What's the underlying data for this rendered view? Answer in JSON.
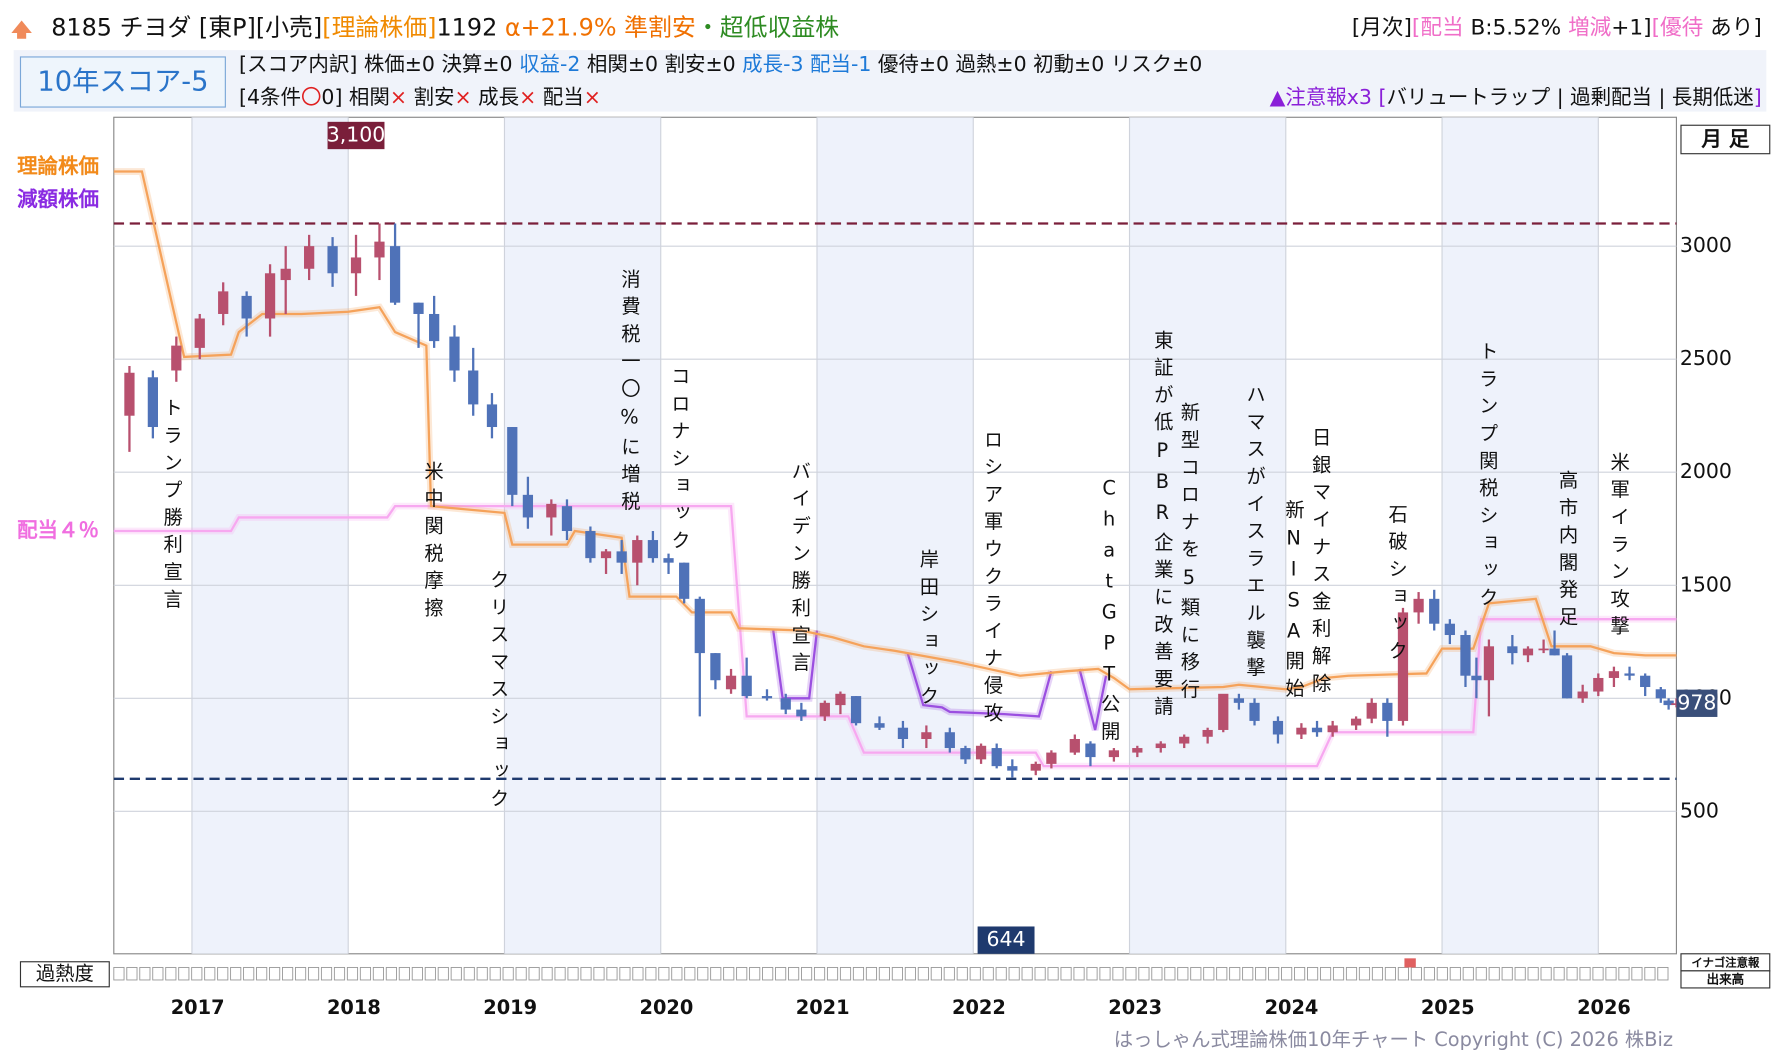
{
  "header": {
    "line1": [
      {
        "text": "8185 チヨダ ",
        "color": "#111"
      },
      {
        "text": "[東P][小売]",
        "color": "#111"
      },
      {
        "text": "[理論株価]",
        "color": "#f08a00"
      },
      {
        "text": "1192 ",
        "color": "#111"
      },
      {
        "text": "α+21.9% 準割安",
        "color": "#f07000"
      },
      {
        "text": "・超低収益株",
        "color": "#2e8b22"
      }
    ],
    "line1_right": [
      {
        "text": "[月次]",
        "color": "#111"
      },
      {
        "text": "[配当",
        "color": "#f06ec8"
      },
      {
        "text": " B:5.52% ",
        "color": "#111"
      },
      {
        "text": "増減",
        "color": "#f06ec8"
      },
      {
        "text": "+1]",
        "color": "#111"
      },
      {
        "text": "[優待",
        "color": "#f06ec8"
      },
      {
        "text": " あり]",
        "color": "#111"
      }
    ],
    "score": "10年スコア-5",
    "line2": [
      {
        "text": "[スコア内訳] 株価±0 決算±0 ",
        "color": "#111"
      },
      {
        "text": "収益-2",
        "color": "#1e7ad8"
      },
      {
        "text": " 相関±0 割安±0 ",
        "color": "#111"
      },
      {
        "text": "成長-3 配当-1",
        "color": "#1e7ad8"
      },
      {
        "text": " 優待±0 過熱±0 初動±0 リスク±0",
        "color": "#111"
      }
    ],
    "line3": [
      {
        "text": "[4条件",
        "color": "#111"
      },
      {
        "text": "〇",
        "color": "#e02020"
      },
      {
        "text": "0] 相関",
        "color": "#111"
      },
      {
        "text": "×",
        "color": "#e02020"
      },
      {
        "text": " 割安",
        "color": "#111"
      },
      {
        "text": "×",
        "color": "#e02020"
      },
      {
        "text": " 成長",
        "color": "#111"
      },
      {
        "text": "×",
        "color": "#e02020"
      },
      {
        "text": " 配当",
        "color": "#111"
      },
      {
        "text": "×",
        "color": "#e02020"
      }
    ],
    "line3_right": [
      {
        "text": "▲注意報x3",
        "color": "#8a1fd8"
      },
      {
        "text": " [",
        "color": "#8a1fd8"
      },
      {
        "text": "バリュートラップ | 過剰配当 | 長期低迷",
        "color": "#111"
      },
      {
        "text": "]",
        "color": "#8a1fd8"
      }
    ],
    "period": "月 足"
  },
  "chart_data": {
    "type": "candlestick",
    "xlim": [
      2016.5,
      2026.5
    ],
    "ylim": [
      -130,
      3570
    ],
    "xticks": [
      2017,
      2018,
      2019,
      2020,
      2021,
      2022,
      2023,
      2024,
      2025,
      2026
    ],
    "yticks": [
      500,
      1000,
      1500,
      2000,
      2500,
      3000
    ],
    "grid": true,
    "shaded_years": [
      2017,
      2019,
      2021,
      2023,
      2025
    ],
    "up_color": "#b8506e",
    "down_color": "#4f72b8",
    "max_line": {
      "value": 3100,
      "label": "3,100",
      "x": 2018.05,
      "color": "#7a1f3a"
    },
    "min_line": {
      "value": 644,
      "label": "644",
      "x": 2022.21,
      "color": "#1f3a6e"
    },
    "last_price": 978,
    "candles": {
      "x": [
        2016.6,
        2016.75,
        2016.9,
        2017.05,
        2017.2,
        2017.35,
        2017.5,
        2017.6,
        2017.75,
        2017.9,
        2018.05,
        2018.2,
        2018.3,
        2018.45,
        2018.55,
        2018.68,
        2018.8,
        2018.92,
        2019.05,
        2019.15,
        2019.3,
        2019.4,
        2019.55,
        2019.65,
        2019.75,
        2019.85,
        2019.95,
        2020.05,
        2020.15,
        2020.25,
        2020.35,
        2020.45,
        2020.55,
        2020.68,
        2020.8,
        2020.9,
        2021.05,
        2021.15,
        2021.25,
        2021.4,
        2021.55,
        2021.7,
        2021.85,
        2021.95,
        2022.05,
        2022.15,
        2022.25,
        2022.4,
        2022.5,
        2022.65,
        2022.75,
        2022.9,
        2023.05,
        2023.2,
        2023.35,
        2023.5,
        2023.6,
        2023.7,
        2023.8,
        2023.95,
        2024.1,
        2024.2,
        2024.3,
        2024.45,
        2024.55,
        2024.65,
        2024.75,
        2024.85,
        2024.95,
        2025.05,
        2025.15,
        2025.22,
        2025.3,
        2025.45,
        2025.55,
        2025.65,
        2025.72,
        2025.8,
        2025.9,
        2026.0,
        2026.1,
        2026.2,
        2026.3,
        2026.4,
        2026.45,
        2026.5
      ],
      "open": [
        2250,
        2420,
        2450,
        2550,
        2700,
        2780,
        2680,
        2850,
        2900,
        3000,
        2880,
        2950,
        3000,
        2750,
        2700,
        2600,
        2450,
        2300,
        2200,
        1900,
        1800,
        1850,
        1740,
        1620,
        1650,
        1600,
        1700,
        1620,
        1600,
        1440,
        1200,
        1040,
        1100,
        1010,
        1000,
        950,
        920,
        970,
        1010,
        890,
        870,
        820,
        850,
        780,
        730,
        780,
        700,
        680,
        710,
        760,
        800,
        740,
        760,
        780,
        800,
        830,
        860,
        1000,
        980,
        900,
        840,
        870,
        850,
        880,
        910,
        980,
        900,
        1380,
        1440,
        1330,
        1280,
        1100,
        1080,
        1230,
        1190,
        1220,
        1220,
        1190,
        1000,
        1030,
        1090,
        1110,
        1100,
        1040,
        990,
        975
      ],
      "high": [
        2470,
        2450,
        2600,
        2700,
        2840,
        2800,
        2920,
        3000,
        3050,
        3040,
        3050,
        3100,
        3100,
        2750,
        2780,
        2650,
        2550,
        2350,
        2200,
        1980,
        1880,
        1880,
        1760,
        1660,
        1700,
        1720,
        1740,
        1640,
        1600,
        1450,
        1200,
        1130,
        1180,
        1040,
        1020,
        980,
        990,
        1030,
        1010,
        920,
        900,
        880,
        870,
        790,
        800,
        800,
        730,
        720,
        770,
        840,
        810,
        780,
        790,
        810,
        840,
        870,
        1000,
        1020,
        1000,
        920,
        890,
        900,
        900,
        920,
        1000,
        1000,
        1400,
        1470,
        1480,
        1350,
        1300,
        1180,
        1260,
        1280,
        1230,
        1260,
        1300,
        1200,
        1060,
        1110,
        1140,
        1140,
        1110,
        1050,
        1000,
        1000
      ],
      "low": [
        2090,
        2150,
        2400,
        2500,
        2650,
        2600,
        2600,
        2700,
        2850,
        2820,
        2780,
        2850,
        2740,
        2550,
        2550,
        2400,
        2250,
        2150,
        1850,
        1750,
        1720,
        1700,
        1600,
        1550,
        1550,
        1500,
        1600,
        1550,
        1420,
        920,
        1040,
        1020,
        1000,
        990,
        930,
        900,
        900,
        930,
        880,
        860,
        780,
        780,
        760,
        710,
        710,
        690,
        650,
        660,
        690,
        750,
        700,
        720,
        740,
        760,
        780,
        800,
        850,
        950,
        880,
        800,
        820,
        830,
        830,
        860,
        890,
        830,
        880,
        1330,
        1300,
        1240,
        1050,
        1000,
        920,
        1150,
        1160,
        1200,
        1190,
        1000,
        980,
        1010,
        1050,
        1080,
        1010,
        980,
        950,
        960
      ],
      "close": [
        2440,
        2200,
        2560,
        2680,
        2800,
        2680,
        2880,
        2900,
        3000,
        2880,
        2950,
        3020,
        2750,
        2700,
        2580,
        2450,
        2300,
        2200,
        1900,
        1800,
        1860,
        1740,
        1620,
        1650,
        1600,
        1700,
        1620,
        1600,
        1440,
        1200,
        1080,
        1100,
        1010,
        1000,
        950,
        920,
        980,
        1020,
        890,
        870,
        820,
        850,
        780,
        730,
        790,
        700,
        680,
        710,
        760,
        820,
        740,
        770,
        780,
        800,
        830,
        860,
        1020,
        980,
        900,
        840,
        870,
        850,
        880,
        910,
        980,
        900,
        1380,
        1440,
        1330,
        1280,
        1100,
        1080,
        1230,
        1200,
        1220,
        1220,
        1190,
        1000,
        1030,
        1090,
        1120,
        1100,
        1050,
        1000,
        970,
        978
      ]
    },
    "series": [
      {
        "name": "減額株価",
        "color": "#9b4fe0",
        "x": [
          2020.72,
          2020.78,
          2020.95,
          2021.0,
          null,
          2021.58,
          2021.68,
          2021.8,
          2021.85,
          2022.2,
          2022.42,
          2022.5,
          null,
          2022.68,
          2022.78,
          2022.85
        ],
        "values": [
          1300,
          1000,
          1000,
          1300,
          null,
          1200,
          970,
          960,
          940,
          930,
          920,
          1120,
          null,
          1130,
          860,
          1100
        ]
      },
      {
        "name": "配当４％",
        "color": "#f7a8f0",
        "x": [
          2016.5,
          2017.25,
          2017.3,
          2018.25,
          2018.3,
          2020.45,
          2020.55,
          2021.2,
          2021.3,
          2022.4,
          2022.45,
          2024.2,
          2024.3,
          2025.2,
          2025.25,
          2026.5
        ],
        "values": [
          1740,
          1740,
          1800,
          1800,
          1850,
          1850,
          920,
          920,
          760,
          760,
          700,
          700,
          850,
          850,
          1350,
          1350
        ]
      },
      {
        "name": "理論株価",
        "color": "#f5a25a",
        "x": [
          2016.5,
          2016.68,
          2016.95,
          2017.25,
          2017.3,
          2017.45,
          2017.7,
          2018.0,
          2018.2,
          2018.3,
          2018.5,
          2018.53,
          2019.0,
          2019.05,
          2019.4,
          2019.45,
          2019.75,
          2019.8,
          2020.1,
          2020.2,
          2020.45,
          2020.5,
          2020.9,
          2021.1,
          2021.3,
          2021.5,
          2021.9,
          2022.1,
          2022.3,
          2022.6,
          2022.8,
          2022.9,
          2023.0,
          2023.6,
          2023.7,
          2024.0,
          2024.1,
          2024.25,
          2024.4,
          2024.9,
          2025.0,
          2025.2,
          2025.3,
          2025.6,
          2025.7,
          2025.95,
          2026.1,
          2026.3,
          2026.5
        ],
        "values": [
          3330,
          3330,
          2510,
          2520,
          2620,
          2700,
          2700,
          2710,
          2730,
          2620,
          2560,
          1850,
          1820,
          1680,
          1680,
          1740,
          1710,
          1450,
          1450,
          1380,
          1380,
          1310,
          1300,
          1270,
          1230,
          1210,
          1160,
          1130,
          1100,
          1120,
          1130,
          1090,
          1040,
          1050,
          1060,
          1040,
          1050,
          1090,
          1100,
          1110,
          1220,
          1220,
          1420,
          1440,
          1230,
          1230,
          1200,
          1190,
          1190
        ]
      }
    ],
    "events": [
      {
        "label": "トランプ勝利宣言",
        "x": 2016.87,
        "y": 2330
      },
      {
        "label": "米中関税摩擦",
        "x": 2018.54,
        "y": 2050
      },
      {
        "label": "クリスマスショック",
        "x": 2018.96,
        "y": 1570
      },
      {
        "label": "消費税一〇%に増税",
        "x": 2019.8,
        "y": 2900
      },
      {
        "label": "コロナショック",
        "x": 2020.12,
        "y": 2470
      },
      {
        "label": "バイデン勝利宣言",
        "x": 2020.89,
        "y": 2050
      },
      {
        "label": "岸田ショック",
        "x": 2021.71,
        "y": 1660
      },
      {
        "label": "ロシア軍ウクライナ侵攻",
        "x": 2022.12,
        "y": 2190
      },
      {
        "label": "ChatGPT公開",
        "x": 2022.87,
        "y": 1980
      },
      {
        "label": "東証が低PBR企業に改善要請",
        "x": 2023.21,
        "y": 2630
      },
      {
        "label": "新型コロナを5類に移行",
        "x": 2023.38,
        "y": 2310
      },
      {
        "label": "ハマスがイスラエル襲撃",
        "x": 2023.8,
        "y": 2390
      },
      {
        "label": "新NISA開始",
        "x": 2024.05,
        "y": 1880
      },
      {
        "label": "日銀マイナス金利解除",
        "x": 2024.22,
        "y": 2200
      },
      {
        "label": "石破ショック",
        "x": 2024.71,
        "y": 1860
      },
      {
        "label": "トランプ関税ショック",
        "x": 2025.29,
        "y": 2580
      },
      {
        "label": "高市内閣発足",
        "x": 2025.8,
        "y": 2010
      },
      {
        "label": "米軍イラン攻撃",
        "x": 2026.13,
        "y": 2090
      }
    ]
  },
  "footer": {
    "heat": "過熱度",
    "inago": "イナゴ注意報",
    "volume": "出来高",
    "copyright": "はっしゃん式理論株価10年チャート Copyright (C) 2026 株Biz"
  }
}
